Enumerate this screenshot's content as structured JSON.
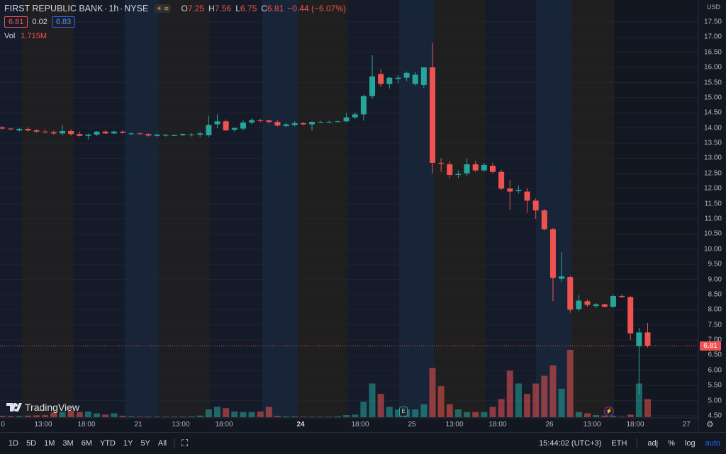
{
  "header": {
    "symbol": "FIRST REPUBLIC BANK",
    "interval": "1h",
    "exchange": "NYSE",
    "ohlc": {
      "o_label": "O",
      "o": "7.25",
      "h_label": "H",
      "h": "7.56",
      "l_label": "L",
      "l": "6.75",
      "c_label": "C",
      "c": "6.81",
      "change": "−0.44 (−6.07%)"
    },
    "bid": "6.81",
    "spread": "0.02",
    "ask": "6.83",
    "vol_label": "Vol",
    "vol_value": "1.715M"
  },
  "currency": "USD",
  "last_price_tag": "6.81",
  "logo_text": "TradingView",
  "timeframes": [
    "1D",
    "5D",
    "1M",
    "3M",
    "6M",
    "YTD",
    "1Y",
    "5Y",
    "All"
  ],
  "status": {
    "time": "15:44:02 (UTC+3)",
    "session": "ETH",
    "adj": "adj",
    "pct": "%",
    "log": "log",
    "auto": "auto"
  },
  "colors": {
    "up": "#26a69a",
    "down": "#ef5350",
    "up_vol": "#26a69a",
    "down_vol": "#ef5350",
    "accent": "#2962ff"
  },
  "icons": {
    "compare": "calendar-range-icon",
    "gear": "gear-icon",
    "earnings": "earnings-marker-icon",
    "dividend": "lightning-marker-icon"
  },
  "chart_data": {
    "type": "candlestick",
    "y_ticks": [
      "4.50",
      "5.00",
      "5.50",
      "6.00",
      "6.50",
      "7.00",
      "7.50",
      "8.00",
      "8.50",
      "9.00",
      "9.50",
      "10.00",
      "10.50",
      "11.00",
      "11.50",
      "12.00",
      "12.50",
      "13.00",
      "13.50",
      "14.00",
      "14.50",
      "15.00",
      "15.50",
      "16.00",
      "16.50",
      "17.00",
      "17.50"
    ],
    "x_labels": [
      {
        "text": "0",
        "bold": false
      },
      {
        "text": "13:00",
        "bold": false
      },
      {
        "text": "18:00",
        "bold": false
      },
      {
        "text": "21",
        "bold": false
      },
      {
        "text": "13:00",
        "bold": false
      },
      {
        "text": "18:00",
        "bold": false
      },
      {
        "text": "24",
        "bold": true
      },
      {
        "text": "18:00",
        "bold": false
      },
      {
        "text": "25",
        "bold": false
      },
      {
        "text": "13:00",
        "bold": false
      },
      {
        "text": "18:00",
        "bold": false
      },
      {
        "text": "26",
        "bold": false
      },
      {
        "text": "13:00",
        "bold": false
      },
      {
        "text": "18:00",
        "bold": false
      },
      {
        "text": "27",
        "bold": false
      }
    ],
    "candles": [
      {
        "o": 14.02,
        "h": 14.05,
        "l": 13.95,
        "c": 13.98,
        "v": 0.05
      },
      {
        "o": 13.98,
        "h": 14.02,
        "l": 13.92,
        "c": 13.96,
        "v": 0.04
      },
      {
        "o": 13.92,
        "h": 14.0,
        "l": 13.88,
        "c": 13.97,
        "v": 0.04
      },
      {
        "o": 13.97,
        "h": 14.02,
        "l": 13.88,
        "c": 13.92,
        "v": 0.06
      },
      {
        "o": 13.92,
        "h": 13.96,
        "l": 13.85,
        "c": 13.88,
        "v": 0.07
      },
      {
        "o": 13.88,
        "h": 13.95,
        "l": 13.82,
        "c": 13.86,
        "v": 0.08
      },
      {
        "o": 13.86,
        "h": 13.92,
        "l": 13.78,
        "c": 13.82,
        "v": 0.18
      },
      {
        "o": 13.82,
        "h": 14.1,
        "l": 13.75,
        "c": 13.9,
        "v": 0.2
      },
      {
        "o": 13.9,
        "h": 13.95,
        "l": 13.75,
        "c": 13.8,
        "v": 0.25
      },
      {
        "o": 13.8,
        "h": 13.88,
        "l": 13.72,
        "c": 13.74,
        "v": 0.2
      },
      {
        "o": 13.74,
        "h": 13.82,
        "l": 13.62,
        "c": 13.78,
        "v": 0.22
      },
      {
        "o": 13.78,
        "h": 13.9,
        "l": 13.74,
        "c": 13.88,
        "v": 0.15
      },
      {
        "o": 13.88,
        "h": 13.92,
        "l": 13.8,
        "c": 13.82,
        "v": 0.1
      },
      {
        "o": 13.82,
        "h": 13.92,
        "l": 13.8,
        "c": 13.88,
        "v": 0.15
      },
      {
        "o": 13.88,
        "h": 13.92,
        "l": 13.8,
        "c": 13.84,
        "v": 0.05
      },
      {
        "o": 13.8,
        "h": 13.85,
        "l": 13.76,
        "c": 13.82,
        "v": 0.03
      },
      {
        "o": 13.82,
        "h": 13.86,
        "l": 13.78,
        "c": 13.8,
        "v": 0.02
      },
      {
        "o": 13.8,
        "h": 13.82,
        "l": 13.72,
        "c": 13.75,
        "v": 0.02
      },
      {
        "o": 13.74,
        "h": 13.82,
        "l": 13.7,
        "c": 13.78,
        "v": 0.02
      },
      {
        "o": 13.76,
        "h": 13.8,
        "l": 13.72,
        "c": 13.77,
        "v": 0.02
      },
      {
        "o": 13.76,
        "h": 13.8,
        "l": 13.74,
        "c": 13.76,
        "v": 0.02
      },
      {
        "o": 13.76,
        "h": 13.82,
        "l": 13.74,
        "c": 13.8,
        "v": 0.02
      },
      {
        "o": 13.78,
        "h": 13.84,
        "l": 13.72,
        "c": 13.78,
        "v": 0.03
      },
      {
        "o": 13.78,
        "h": 13.88,
        "l": 13.7,
        "c": 13.82,
        "v": 0.06
      },
      {
        "o": 13.76,
        "h": 14.4,
        "l": 13.7,
        "c": 14.1,
        "v": 0.3
      },
      {
        "o": 14.12,
        "h": 14.45,
        "l": 14.0,
        "c": 14.22,
        "v": 0.4
      },
      {
        "o": 14.22,
        "h": 14.28,
        "l": 13.9,
        "c": 13.92,
        "v": 0.35
      },
      {
        "o": 13.94,
        "h": 14.02,
        "l": 13.88,
        "c": 14.0,
        "v": 0.22
      },
      {
        "o": 13.98,
        "h": 14.25,
        "l": 13.92,
        "c": 14.18,
        "v": 0.2
      },
      {
        "o": 14.18,
        "h": 14.32,
        "l": 14.12,
        "c": 14.26,
        "v": 0.2
      },
      {
        "o": 14.25,
        "h": 14.3,
        "l": 14.18,
        "c": 14.24,
        "v": 0.22
      },
      {
        "o": 14.25,
        "h": 14.28,
        "l": 14.15,
        "c": 14.2,
        "v": 0.4
      },
      {
        "o": 14.2,
        "h": 14.26,
        "l": 14.05,
        "c": 14.08,
        "v": 0.05
      },
      {
        "o": 14.06,
        "h": 14.18,
        "l": 14.02,
        "c": 14.12,
        "v": 0.03
      },
      {
        "o": 14.1,
        "h": 14.22,
        "l": 14.05,
        "c": 14.16,
        "v": 0.03
      },
      {
        "o": 14.16,
        "h": 14.2,
        "l": 14.08,
        "c": 14.12,
        "v": 0.02
      },
      {
        "o": 14.12,
        "h": 14.22,
        "l": 13.9,
        "c": 14.2,
        "v": 0.02
      },
      {
        "o": 14.2,
        "h": 14.24,
        "l": 14.16,
        "c": 14.2,
        "v": 0.02
      },
      {
        "o": 14.2,
        "h": 14.24,
        "l": 14.16,
        "c": 14.2,
        "v": 0.02
      },
      {
        "o": 14.2,
        "h": 14.26,
        "l": 14.18,
        "c": 14.22,
        "v": 0.03
      },
      {
        "o": 14.22,
        "h": 14.5,
        "l": 14.18,
        "c": 14.35,
        "v": 0.08
      },
      {
        "o": 14.35,
        "h": 14.52,
        "l": 14.3,
        "c": 14.45,
        "v": 0.1
      },
      {
        "o": 14.45,
        "h": 15.1,
        "l": 14.25,
        "c": 15.05,
        "v": 0.6
      },
      {
        "o": 15.05,
        "h": 16.4,
        "l": 14.95,
        "c": 15.7,
        "v": 1.3
      },
      {
        "o": 15.78,
        "h": 15.95,
        "l": 15.35,
        "c": 15.45,
        "v": 0.9
      },
      {
        "o": 15.45,
        "h": 15.68,
        "l": 15.3,
        "c": 15.66,
        "v": 0.4
      },
      {
        "o": 15.62,
        "h": 15.75,
        "l": 15.48,
        "c": 15.66,
        "v": 0.3
      },
      {
        "o": 15.66,
        "h": 15.86,
        "l": 15.55,
        "c": 15.82,
        "v": 0.3
      },
      {
        "o": 15.45,
        "h": 15.86,
        "l": 15.4,
        "c": 15.76,
        "v": 0.3
      },
      {
        "o": 15.42,
        "h": 16.0,
        "l": 15.32,
        "c": 16.0,
        "v": 0.5
      },
      {
        "o": 16.0,
        "h": 16.8,
        "l": 12.5,
        "c": 12.85,
        "v": 1.9
      },
      {
        "o": 12.85,
        "h": 13.0,
        "l": 12.55,
        "c": 12.82,
        "v": 1.2
      },
      {
        "o": 12.8,
        "h": 12.9,
        "l": 12.35,
        "c": 12.45,
        "v": 0.5
      },
      {
        "o": 12.45,
        "h": 12.6,
        "l": 12.35,
        "c": 12.48,
        "v": 0.3
      },
      {
        "o": 12.5,
        "h": 13.0,
        "l": 12.42,
        "c": 12.8,
        "v": 0.2
      },
      {
        "o": 12.8,
        "h": 12.92,
        "l": 12.55,
        "c": 12.6,
        "v": 0.2
      },
      {
        "o": 12.6,
        "h": 12.85,
        "l": 12.55,
        "c": 12.78,
        "v": 0.2
      },
      {
        "o": 12.75,
        "h": 12.85,
        "l": 12.5,
        "c": 12.55,
        "v": 0.4
      },
      {
        "o": 12.55,
        "h": 12.62,
        "l": 11.95,
        "c": 12.0,
        "v": 0.7
      },
      {
        "o": 12.0,
        "h": 12.28,
        "l": 11.3,
        "c": 11.9,
        "v": 1.8
      },
      {
        "o": 11.92,
        "h": 12.1,
        "l": 11.84,
        "c": 11.96,
        "v": 1.3
      },
      {
        "o": 11.9,
        "h": 12.02,
        "l": 11.2,
        "c": 11.6,
        "v": 0.9
      },
      {
        "o": 11.6,
        "h": 11.68,
        "l": 11.0,
        "c": 11.28,
        "v": 1.3
      },
      {
        "o": 11.28,
        "h": 11.32,
        "l": 10.62,
        "c": 10.66,
        "v": 1.6
      },
      {
        "o": 10.66,
        "h": 10.7,
        "l": 8.28,
        "c": 9.05,
        "v": 2.0
      },
      {
        "o": 9.02,
        "h": 9.9,
        "l": 8.92,
        "c": 9.1,
        "v": 1.1
      },
      {
        "o": 9.08,
        "h": 9.12,
        "l": 7.9,
        "c": 8.0,
        "v": 2.6
      },
      {
        "o": 8.02,
        "h": 8.48,
        "l": 7.95,
        "c": 8.3,
        "v": 0.2
      },
      {
        "o": 8.28,
        "h": 8.34,
        "l": 8.1,
        "c": 8.16,
        "v": 0.15
      },
      {
        "o": 8.12,
        "h": 8.22,
        "l": 8.05,
        "c": 8.18,
        "v": 0.08
      },
      {
        "o": 8.18,
        "h": 8.2,
        "l": 8.08,
        "c": 8.1,
        "v": 0.06
      },
      {
        "o": 8.1,
        "h": 8.5,
        "l": 8.06,
        "c": 8.45,
        "v": 0.05
      },
      {
        "o": 8.45,
        "h": 8.5,
        "l": 8.38,
        "c": 8.42,
        "v": 0.02
      },
      {
        "o": 8.42,
        "h": 8.45,
        "l": 7.0,
        "c": 7.22,
        "v": 0.1
      },
      {
        "o": 6.8,
        "h": 7.4,
        "l": 5.2,
        "c": 7.25,
        "v": 1.3
      },
      {
        "o": 7.25,
        "h": 7.56,
        "l": 6.75,
        "c": 6.81,
        "v": 0.7
      }
    ]
  }
}
